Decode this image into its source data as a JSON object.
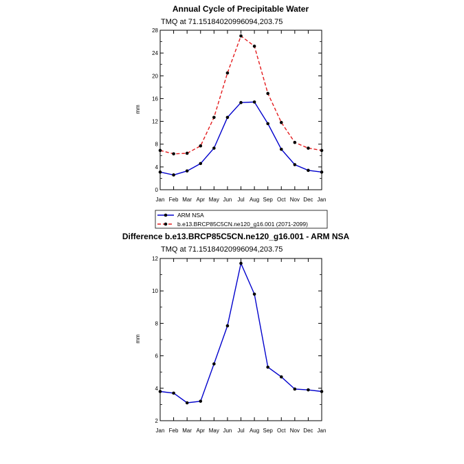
{
  "chart_data": [
    {
      "type": "line",
      "title": "Annual Cycle of Precipitable Water",
      "subtitle": "TMQ at 71.15184020996094,203.75",
      "xlabel": "",
      "ylabel": "mm",
      "categories": [
        "Jan",
        "Feb",
        "Mar",
        "Apr",
        "May",
        "Jun",
        "Jul",
        "Aug",
        "Sep",
        "Oct",
        "Nov",
        "Dec",
        "Jan"
      ],
      "ylim": [
        0,
        28
      ],
      "yticks": [
        0,
        4,
        8,
        12,
        16,
        20,
        24,
        28
      ],
      "legend_position": "bottom",
      "series": [
        {
          "name": "ARM NSA",
          "color": "#0000cc",
          "dash": "solid",
          "values": [
            3.1,
            2.6,
            3.3,
            4.6,
            7.3,
            12.7,
            15.3,
            15.4,
            11.6,
            7.1,
            4.4,
            3.4,
            3.1
          ]
        },
        {
          "name": "b.e13.BRCP85C5CN.ne120_g16.001 (2071-2099)",
          "color": "#e41a1c",
          "dash": "dashed",
          "values": [
            6.9,
            6.3,
            6.4,
            7.7,
            12.7,
            20.5,
            27.0,
            25.2,
            16.9,
            11.8,
            8.3,
            7.3,
            6.9
          ]
        }
      ]
    },
    {
      "type": "line",
      "title": "Difference b.e13.BRCP85C5CN.ne120_g16.001 - ARM NSA",
      "subtitle": "TMQ at 71.15184020996094,203.75",
      "xlabel": "",
      "ylabel": "mm",
      "categories": [
        "Jan",
        "Feb",
        "Mar",
        "Apr",
        "May",
        "Jun",
        "Jul",
        "Aug",
        "Sep",
        "Oct",
        "Nov",
        "Dec",
        "Jan"
      ],
      "ylim": [
        2,
        12
      ],
      "yticks": [
        2,
        4,
        6,
        8,
        10,
        12
      ],
      "series": [
        {
          "name": "Difference",
          "color": "#0000cc",
          "dash": "solid",
          "values": [
            3.8,
            3.7,
            3.1,
            3.2,
            5.5,
            7.85,
            11.7,
            9.8,
            5.3,
            4.7,
            3.95,
            3.9,
            3.8
          ]
        }
      ]
    }
  ]
}
